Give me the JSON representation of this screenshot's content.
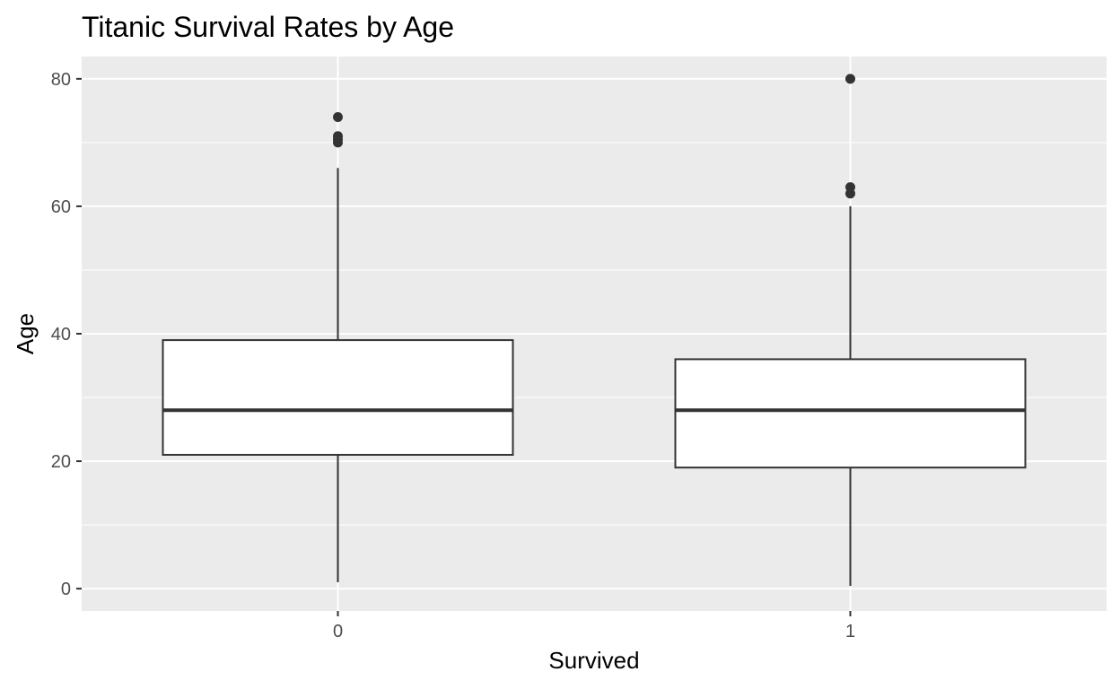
{
  "chart_data": {
    "type": "boxplot",
    "title": "Titanic Survival Rates by Age",
    "xlabel": "Survived",
    "ylabel": "Age",
    "ylim": [
      -3.5,
      83.5
    ],
    "y_ticks": [
      0,
      20,
      40,
      60,
      80
    ],
    "y_tick_labels": [
      "0",
      "20",
      "40",
      "60",
      "80"
    ],
    "grid": true,
    "categories": [
      "0",
      "1"
    ],
    "boxes": [
      {
        "category": "0",
        "whisker_low": 1,
        "q1": 21,
        "median": 28,
        "q3": 39,
        "whisker_high": 66,
        "outliers": [
          70,
          70.5,
          71,
          74
        ]
      },
      {
        "category": "1",
        "whisker_low": 0.42,
        "q1": 19,
        "median": 28,
        "q3": 36,
        "whisker_high": 60,
        "outliers": [
          62,
          63,
          80
        ]
      }
    ],
    "colors": {
      "panel_background": "#ebebeb",
      "grid_line": "#ffffff",
      "box_fill": "#ffffff",
      "box_stroke": "#333333",
      "outlier": "#333333",
      "tick": "#333333",
      "tick_text": "#4d4d4d"
    }
  }
}
